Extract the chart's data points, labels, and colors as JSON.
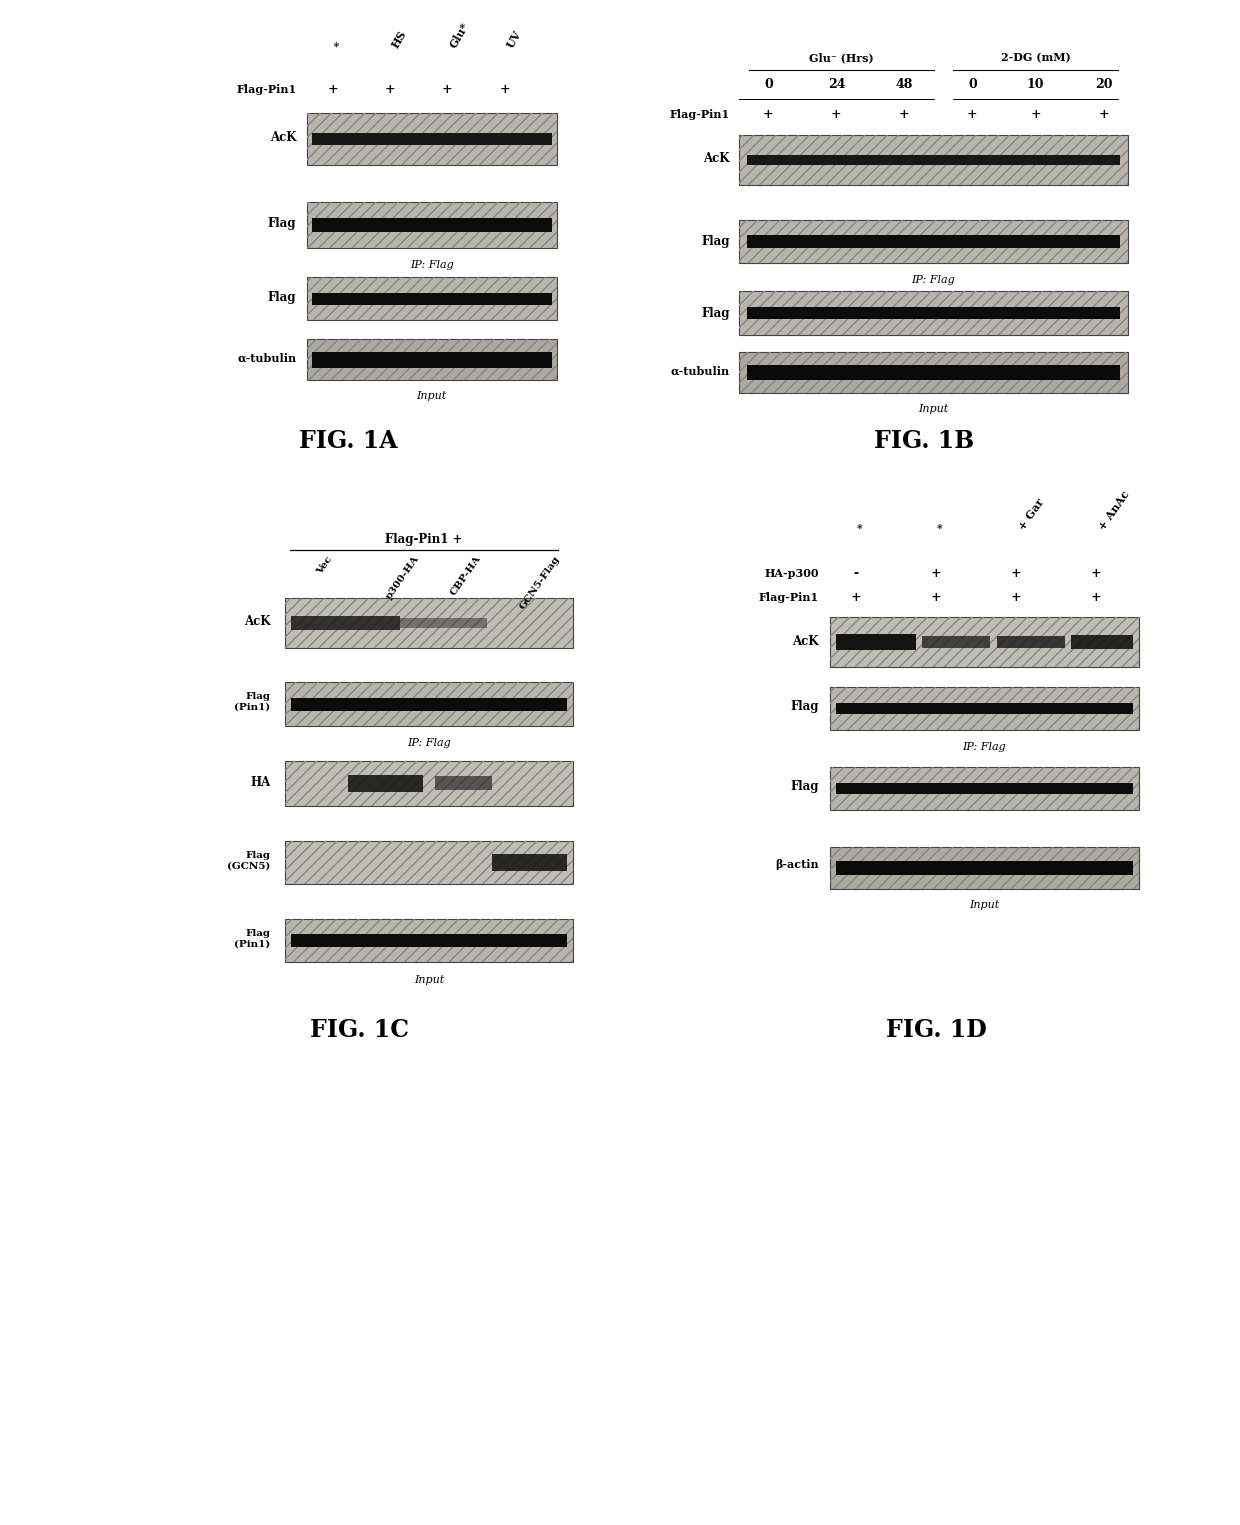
{
  "fig_width": 12.4,
  "fig_height": 15.25,
  "bg": "#f0ece8",
  "panel_1A": {
    "col_labels": [
      "*",
      "HS",
      "Glu*",
      "UV"
    ],
    "flag_pin1_vals": [
      "+",
      "+",
      "+",
      "+"
    ],
    "rows_ip": [
      "AcK",
      "Flag"
    ],
    "ip_label": "IP: Flag",
    "rows_input": [
      "Flag",
      "α-tubulin"
    ],
    "input_label": "Input",
    "fig_label": "FIG. 1A"
  },
  "panel_1B": {
    "group1": "Glu⁻ (Hrs)",
    "group2": "2-DG (mM)",
    "col_labels": [
      "0",
      "24",
      "48",
      "0",
      "10",
      "20"
    ],
    "flag_pin1_vals": [
      "+",
      "+",
      "+",
      "+",
      "+",
      "+"
    ],
    "rows_ip": [
      "AcK",
      "Flag"
    ],
    "ip_label": "IP: Flag",
    "rows_input": [
      "Flag",
      "α-tubulin"
    ],
    "input_label": "Input",
    "fig_label": "FIG. 1B"
  },
  "panel_1C": {
    "main_header": "Flag-Pin1 +",
    "col_labels": [
      "Vec",
      "p300-HA",
      "CBP-HA",
      "GCN5-Flag"
    ],
    "rows_ip": [
      "AcK",
      "Flag\n(Pin1)"
    ],
    "ip_label": "IP: Flag",
    "rows_input": [
      "HA",
      "Flag\n(GCN5)",
      "Flag\n(Pin1)"
    ],
    "input_label": "Input",
    "fig_label": "FIG. 1C"
  },
  "panel_1D": {
    "col_labels": [
      "*",
      "*",
      "+ Gar",
      "+ AnAc"
    ],
    "ha_p300_vals": [
      "-",
      "+",
      "+",
      "+"
    ],
    "flag_pin1_vals": [
      "+",
      "+",
      "+",
      "+"
    ],
    "rows_ip": [
      "AcK",
      "Flag"
    ],
    "ip_label": "IP: Flag",
    "rows_input": [
      "Flag",
      "β-actin"
    ],
    "input_label": "Input",
    "fig_label": "FIG. 1D"
  },
  "blot_bg": "#b8b4ae",
  "blot_bg2": "#c0bcb6",
  "band_dark": "#141414",
  "band_mid": "#2a2a2a",
  "hatch": "///",
  "hatch_color": "#888880"
}
